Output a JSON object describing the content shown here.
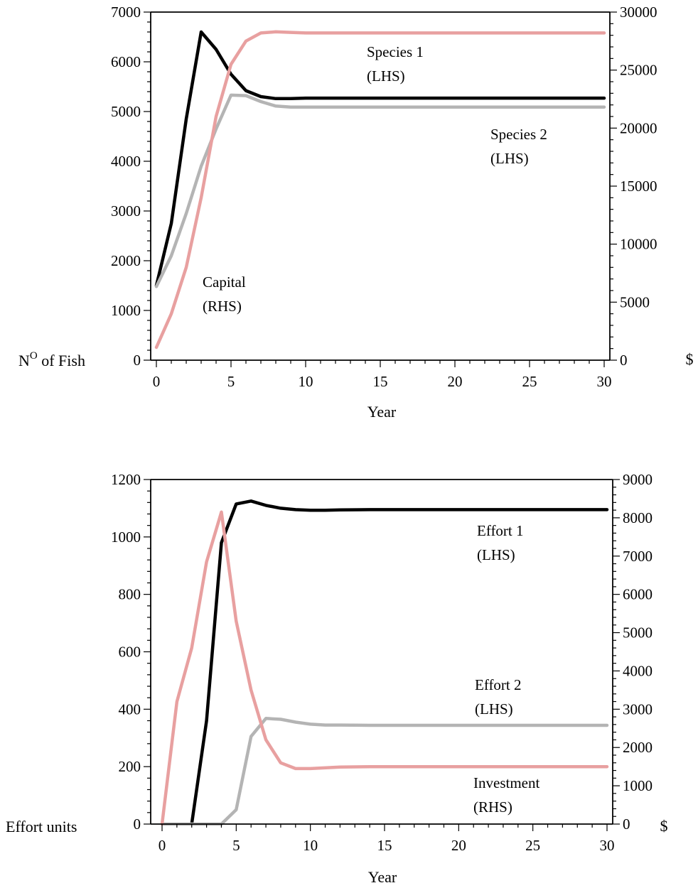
{
  "chart_data": [
    {
      "type": "line",
      "xlabel": "Year",
      "ylabel": "N",
      "ylabel_sup": "O",
      "ylabel_rest": " of Fish",
      "y2label": "$",
      "xlim": [
        0,
        30
      ],
      "ylim": [
        0,
        7000
      ],
      "y2lim": [
        0,
        30000
      ],
      "x_ticks": [
        0,
        5,
        10,
        15,
        20,
        25,
        30
      ],
      "y_ticks": [
        0,
        1000,
        2000,
        3000,
        4000,
        5000,
        6000,
        7000
      ],
      "y2_ticks": [
        0,
        5000,
        10000,
        15000,
        20000,
        25000,
        30000
      ],
      "grid": false,
      "legend": "none",
      "annotations": [
        {
          "line1": "Species 1",
          "line2": "(LHS)"
        },
        {
          "line1": "Species 2",
          "line2": "(LHS)"
        },
        {
          "line1": "Capital",
          "line2": "(RHS)"
        }
      ],
      "series": [
        {
          "axis": "left",
          "color": "#000000",
          "x": [
            0,
            1,
            2,
            3,
            4,
            5,
            6,
            7,
            8,
            9,
            10,
            12,
            14,
            16,
            18,
            20,
            22,
            24,
            26,
            28,
            30
          ],
          "values": [
            1500,
            2750,
            4850,
            6600,
            6250,
            5750,
            5420,
            5300,
            5260,
            5260,
            5270,
            5270,
            5270,
            5270,
            5270,
            5270,
            5270,
            5270,
            5270,
            5270,
            5270
          ]
        },
        {
          "axis": "left",
          "color": "#b4b4b4",
          "x": [
            0,
            1,
            2,
            3,
            4,
            5,
            6,
            7,
            8,
            9,
            10,
            12,
            14,
            16,
            18,
            20,
            22,
            24,
            26,
            28,
            30
          ],
          "values": [
            1480,
            2100,
            2950,
            3900,
            4650,
            5330,
            5320,
            5200,
            5110,
            5090,
            5090,
            5090,
            5090,
            5090,
            5090,
            5090,
            5090,
            5090,
            5090,
            5090,
            5090
          ]
        },
        {
          "axis": "right",
          "color": "#e8a0a0",
          "x": [
            0,
            1,
            2,
            3,
            4,
            5,
            6,
            7,
            8,
            9,
            10,
            12,
            14,
            16,
            18,
            20,
            22,
            24,
            26,
            28,
            30
          ],
          "values": [
            1100,
            4000,
            8000,
            14000,
            21000,
            25500,
            27500,
            28200,
            28300,
            28250,
            28200,
            28200,
            28200,
            28200,
            28200,
            28200,
            28200,
            28200,
            28200,
            28200,
            28200
          ]
        }
      ]
    },
    {
      "type": "line",
      "xlabel": "Year",
      "ylabel": "Effort units",
      "y2label": "$",
      "xlim": [
        0,
        30
      ],
      "ylim": [
        0,
        1200
      ],
      "y2lim": [
        0,
        9000
      ],
      "x_ticks": [
        0,
        5,
        10,
        15,
        20,
        25,
        30
      ],
      "y_ticks": [
        0,
        200,
        400,
        600,
        800,
        1000,
        1200
      ],
      "y2_ticks": [
        0,
        1000,
        2000,
        3000,
        4000,
        5000,
        6000,
        7000,
        8000,
        9000
      ],
      "grid": false,
      "legend": "none",
      "annotations": [
        {
          "line1": "Effort 1",
          "line2": "(LHS)"
        },
        {
          "line1": "Effort 2",
          "line2": "(LHS)"
        },
        {
          "line1": "Investment",
          "line2": "(RHS)"
        }
      ],
      "series": [
        {
          "axis": "left",
          "color": "#000000",
          "x": [
            2,
            3,
            4,
            5,
            6,
            7,
            8,
            9,
            10,
            11,
            12,
            14,
            16,
            18,
            20,
            22,
            24,
            26,
            28,
            30
          ],
          "values": [
            0,
            360,
            980,
            1115,
            1125,
            1110,
            1100,
            1095,
            1093,
            1093,
            1094,
            1095,
            1095,
            1095,
            1095,
            1095,
            1095,
            1095,
            1095,
            1095
          ]
        },
        {
          "axis": "left",
          "color": "#b4b4b4",
          "x": [
            0,
            4,
            5,
            6,
            7,
            8,
            9,
            10,
            11,
            12,
            14,
            16,
            18,
            20,
            22,
            24,
            26,
            28,
            30
          ],
          "values": [
            0,
            0,
            50,
            305,
            368,
            365,
            355,
            348,
            345,
            345,
            344,
            344,
            344,
            344,
            344,
            344,
            344,
            344,
            344
          ]
        },
        {
          "axis": "right",
          "color": "#e8a0a0",
          "x": [
            0,
            1,
            2,
            3,
            4,
            5,
            6,
            7,
            8,
            9,
            10,
            12,
            14,
            16,
            18,
            20,
            22,
            24,
            26,
            28,
            30
          ],
          "values": [
            0,
            3200,
            4600,
            6850,
            8150,
            5300,
            3500,
            2200,
            1600,
            1450,
            1450,
            1490,
            1500,
            1500,
            1500,
            1500,
            1500,
            1500,
            1500,
            1500,
            1500
          ]
        }
      ]
    }
  ]
}
